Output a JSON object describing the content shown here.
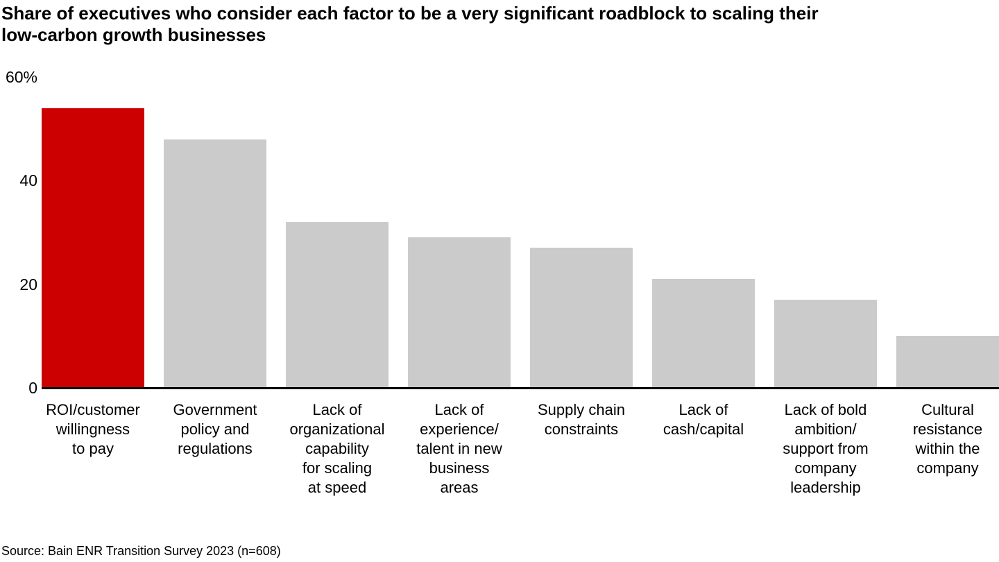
{
  "page": {
    "title": "Share of executives who consider each factor to be a very significant roadblock to scaling their\nlow-carbon growth businesses",
    "source": "Source: Bain ENR Transition Survey 2023 (n=608)"
  },
  "chart_data": {
    "type": "bar",
    "title": "Share of executives who consider each factor to be a very significant roadblock to scaling their low-carbon growth businesses",
    "unit": "%",
    "categories": [
      "ROI/customer\nwillingness\nto pay",
      "Government\npolicy and\nregulations",
      "Lack of\norganizational\ncapability\nfor scaling\nat speed",
      "Lack of\nexperience/\ntalent in new\nbusiness\nareas",
      "Supply chain\nconstraints",
      "Lack of\ncash/capital",
      "Lack of bold\nambition/\nsupport from\ncompany\nleadership",
      "Cultural\nresistance\nwithin the\ncompany"
    ],
    "values": [
      54,
      48,
      32,
      29,
      27,
      21,
      17,
      10
    ],
    "xlabel": "",
    "ylabel": "",
    "ylim": [
      0,
      60
    ],
    "yticks": [
      {
        "value": 60,
        "label": "60%"
      },
      {
        "value": 40,
        "label": "40"
      },
      {
        "value": 20,
        "label": "20"
      },
      {
        "value": 0,
        "label": "0"
      }
    ],
    "grid": false,
    "legend": null,
    "highlight_index": 0,
    "colors": {
      "highlight": "#cc0000",
      "default": "#cbcbcb",
      "axis": "#000000",
      "text": "#000000"
    },
    "source": "Source: Bain ENR Transition Survey 2023 (n=608)"
  }
}
